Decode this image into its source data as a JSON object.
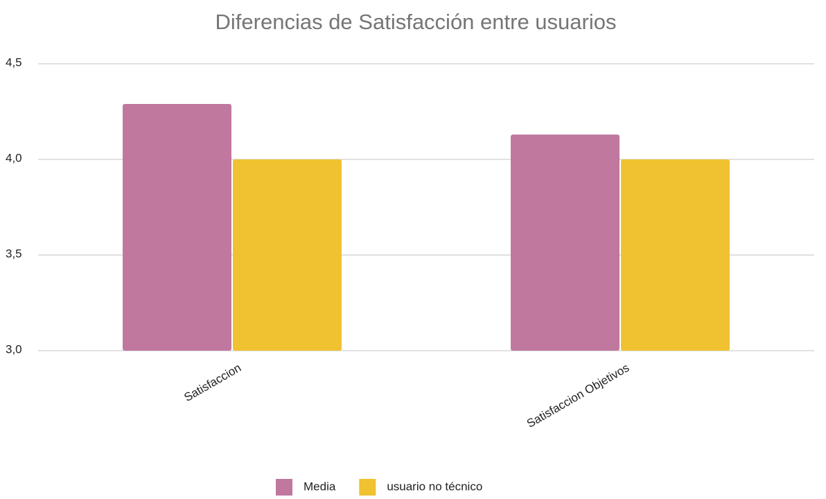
{
  "chart_data": {
    "type": "bar",
    "title": "Diferencias de Satisfacción entre usuarios",
    "categories": [
      "Satisfaccion",
      "Satisfaccion Objetivos"
    ],
    "series": [
      {
        "name": "Media",
        "color": "#c0789f",
        "values": [
          4.29,
          4.13
        ]
      },
      {
        "name": "usuario no técnico",
        "color": "#f0c130",
        "values": [
          4.0,
          4.0
        ]
      }
    ],
    "ylim": [
      3.0,
      4.5
    ],
    "yticks": [
      {
        "value": 3.0,
        "label": "3,0"
      },
      {
        "value": 3.5,
        "label": "3,5"
      },
      {
        "value": 4.0,
        "label": "4,0"
      },
      {
        "value": 4.5,
        "label": "4,5"
      }
    ],
    "grid": true,
    "legend": "bottom"
  }
}
